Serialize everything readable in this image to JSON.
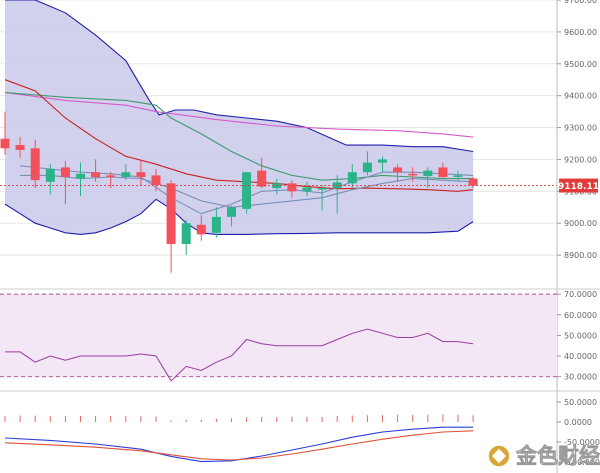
{
  "colors": {
    "background": "#ffffff",
    "bollinger_fill": "#c9c9ea",
    "bollinger_line": "#1f1fa8",
    "ma_red": "#c8231e",
    "ma_pink": "#d65ac9",
    "ma_green": "#3f9a6e",
    "ma_slate": "#7a8fb6",
    "up_candle": "#2bb38a",
    "down_candle": "#f2505a",
    "price_line": "#e23b3b",
    "price_label_bg": "#e23b3b",
    "rsi_fill": "#f3e6f5",
    "rsi_line": "#9b3ba0",
    "rsi_band": "#b04a8a",
    "macd_blue": "#2b3dd6",
    "macd_red": "#e2523a",
    "macd_hist": "#e06a6a",
    "grid": "#e8e8e8",
    "separator": "#cccccc"
  },
  "price_label": "9118.11",
  "watermark": {
    "text": "金色财经",
    "icon": "gold-coin-logo-icon"
  },
  "chart_data": [
    {
      "type": "candlestick",
      "panel": "price",
      "ylim": [
        8800,
        9700
      ],
      "y_ticks": [
        "9700.00",
        "9600.00",
        "9500.00",
        "9400.00",
        "9300.00",
        "9200.00",
        "9100.00",
        "9000.00",
        "8900.00"
      ],
      "y_tick_values": [
        9700,
        9600,
        9500,
        9400,
        9300,
        9200,
        9100,
        9000,
        8900
      ],
      "current_price": 9118.11,
      "candles": [
        {
          "o": 9265,
          "h": 9350,
          "l": 9215,
          "c": 9235
        },
        {
          "o": 9245,
          "h": 9270,
          "l": 9205,
          "c": 9230
        },
        {
          "o": 9235,
          "h": 9262,
          "l": 9110,
          "c": 9135
        },
        {
          "o": 9130,
          "h": 9185,
          "l": 9090,
          "c": 9170
        },
        {
          "o": 9175,
          "h": 9195,
          "l": 9060,
          "c": 9145
        },
        {
          "o": 9140,
          "h": 9190,
          "l": 9085,
          "c": 9155
        },
        {
          "o": 9160,
          "h": 9200,
          "l": 9130,
          "c": 9145
        },
        {
          "o": 9150,
          "h": 9160,
          "l": 9110,
          "c": 9148
        },
        {
          "o": 9145,
          "h": 9185,
          "l": 9135,
          "c": 9160
        },
        {
          "o": 9160,
          "h": 9195,
          "l": 9120,
          "c": 9145
        },
        {
          "o": 9150,
          "h": 9170,
          "l": 9100,
          "c": 9120
        },
        {
          "o": 9125,
          "h": 9135,
          "l": 8845,
          "c": 8935
        },
        {
          "o": 8935,
          "h": 9010,
          "l": 8900,
          "c": 9000
        },
        {
          "o": 8995,
          "h": 9025,
          "l": 8945,
          "c": 8965
        },
        {
          "o": 8970,
          "h": 9050,
          "l": 8955,
          "c": 9020
        },
        {
          "o": 9020,
          "h": 9055,
          "l": 8990,
          "c": 9050
        },
        {
          "o": 9045,
          "h": 9160,
          "l": 9030,
          "c": 9160
        },
        {
          "o": 9165,
          "h": 9205,
          "l": 9110,
          "c": 9115
        },
        {
          "o": 9110,
          "h": 9140,
          "l": 9090,
          "c": 9125
        },
        {
          "o": 9125,
          "h": 9135,
          "l": 9080,
          "c": 9100
        },
        {
          "o": 9100,
          "h": 9130,
          "l": 9085,
          "c": 9112
        },
        {
          "o": 9108,
          "h": 9120,
          "l": 9040,
          "c": 9110
        },
        {
          "o": 9110,
          "h": 9150,
          "l": 9030,
          "c": 9128
        },
        {
          "o": 9125,
          "h": 9185,
          "l": 9110,
          "c": 9160
        },
        {
          "o": 9160,
          "h": 9225,
          "l": 9150,
          "c": 9190
        },
        {
          "o": 9190,
          "h": 9210,
          "l": 9160,
          "c": 9200
        },
        {
          "o": 9175,
          "h": 9185,
          "l": 9130,
          "c": 9160
        },
        {
          "o": 9155,
          "h": 9175,
          "l": 9130,
          "c": 9150
        },
        {
          "o": 9148,
          "h": 9175,
          "l": 9110,
          "c": 9165
        },
        {
          "o": 9175,
          "h": 9190,
          "l": 9140,
          "c": 9145
        },
        {
          "o": 9145,
          "h": 9165,
          "l": 9130,
          "c": 9150
        },
        {
          "o": 9140,
          "h": 9145,
          "l": 9110,
          "c": 9118
        }
      ],
      "bollinger_upper": [
        {
          "x": 0,
          "y": 9700
        },
        {
          "x": 2,
          "y": 9700
        },
        {
          "x": 4,
          "y": 9660
        },
        {
          "x": 6,
          "y": 9590
        },
        {
          "x": 8,
          "y": 9510
        },
        {
          "x": 9.5,
          "y": 9390
        },
        {
          "x": 10.2,
          "y": 9340
        },
        {
          "x": 11.3,
          "y": 9355
        },
        {
          "x": 12.5,
          "y": 9355
        },
        {
          "x": 14,
          "y": 9340
        },
        {
          "x": 16,
          "y": 9330
        },
        {
          "x": 18,
          "y": 9320
        },
        {
          "x": 20,
          "y": 9300
        },
        {
          "x": 22.6,
          "y": 9245
        },
        {
          "x": 25,
          "y": 9245
        },
        {
          "x": 27,
          "y": 9240
        },
        {
          "x": 29,
          "y": 9240
        },
        {
          "x": 31,
          "y": 9225
        }
      ],
      "bollinger_lower": [
        {
          "x": 0,
          "y": 9060
        },
        {
          "x": 1,
          "y": 9030
        },
        {
          "x": 2,
          "y": 9000
        },
        {
          "x": 3,
          "y": 8985
        },
        {
          "x": 4,
          "y": 8970
        },
        {
          "x": 5,
          "y": 8965
        },
        {
          "x": 6,
          "y": 8970
        },
        {
          "x": 7,
          "y": 8985
        },
        {
          "x": 8,
          "y": 9005
        },
        {
          "x": 9,
          "y": 9030
        },
        {
          "x": 10,
          "y": 9075
        },
        {
          "x": 11,
          "y": 9045
        },
        {
          "x": 12,
          "y": 9000
        },
        {
          "x": 13,
          "y": 8970
        },
        {
          "x": 14,
          "y": 8965
        },
        {
          "x": 16,
          "y": 8965
        },
        {
          "x": 18,
          "y": 8967
        },
        {
          "x": 20,
          "y": 8968
        },
        {
          "x": 22,
          "y": 8970
        },
        {
          "x": 24,
          "y": 8970
        },
        {
          "x": 26,
          "y": 8970
        },
        {
          "x": 28,
          "y": 8970
        },
        {
          "x": 30,
          "y": 8975
        },
        {
          "x": 31,
          "y": 9005
        }
      ],
      "lines": [
        {
          "color_key": "ma_pink",
          "points": [
            {
              "x": 0,
              "y": 9410
            },
            {
              "x": 4,
              "y": 9385
            },
            {
              "x": 8,
              "y": 9370
            },
            {
              "x": 10,
              "y": 9350
            },
            {
              "x": 14,
              "y": 9325
            },
            {
              "x": 18,
              "y": 9305
            },
            {
              "x": 22,
              "y": 9295
            },
            {
              "x": 26,
              "y": 9290
            },
            {
              "x": 29,
              "y": 9280
            },
            {
              "x": 31,
              "y": 9270
            }
          ]
        },
        {
          "color_key": "ma_green",
          "points": [
            {
              "x": 0,
              "y": 9410
            },
            {
              "x": 4,
              "y": 9395
            },
            {
              "x": 8,
              "y": 9385
            },
            {
              "x": 10,
              "y": 9370
            },
            {
              "x": 11,
              "y": 9330
            },
            {
              "x": 13,
              "y": 9280
            },
            {
              "x": 15,
              "y": 9225
            },
            {
              "x": 17,
              "y": 9180
            },
            {
              "x": 19,
              "y": 9150
            },
            {
              "x": 21,
              "y": 9135
            },
            {
              "x": 23,
              "y": 9140
            },
            {
              "x": 25,
              "y": 9150
            },
            {
              "x": 27,
              "y": 9145
            },
            {
              "x": 29,
              "y": 9140
            },
            {
              "x": 31,
              "y": 9140
            }
          ]
        },
        {
          "color_key": "ma_red",
          "points": [
            {
              "x": 0,
              "y": 9450
            },
            {
              "x": 2,
              "y": 9415
            },
            {
              "x": 4,
              "y": 9330
            },
            {
              "x": 6,
              "y": 9265
            },
            {
              "x": 8,
              "y": 9210
            },
            {
              "x": 10,
              "y": 9185
            },
            {
              "x": 12,
              "y": 9155
            },
            {
              "x": 14,
              "y": 9135
            },
            {
              "x": 16,
              "y": 9130
            },
            {
              "x": 18,
              "y": 9125
            },
            {
              "x": 20,
              "y": 9115
            },
            {
              "x": 22,
              "y": 9108
            },
            {
              "x": 24,
              "y": 9110
            },
            {
              "x": 26,
              "y": 9108
            },
            {
              "x": 28,
              "y": 9105
            },
            {
              "x": 30,
              "y": 9100
            },
            {
              "x": 31,
              "y": 9105
            }
          ]
        },
        {
          "color_key": "ma_slate",
          "points": [
            {
              "x": 1,
              "y": 9180
            },
            {
              "x": 3,
              "y": 9170
            },
            {
              "x": 5,
              "y": 9160
            },
            {
              "x": 7,
              "y": 9155
            },
            {
              "x": 9,
              "y": 9145
            },
            {
              "x": 11,
              "y": 9080
            },
            {
              "x": 13,
              "y": 9030
            },
            {
              "x": 15,
              "y": 9060
            },
            {
              "x": 17,
              "y": 9100
            },
            {
              "x": 19,
              "y": 9105
            },
            {
              "x": 21,
              "y": 9095
            },
            {
              "x": 23,
              "y": 9130
            },
            {
              "x": 25,
              "y": 9160
            },
            {
              "x": 27,
              "y": 9160
            },
            {
              "x": 29,
              "y": 9155
            },
            {
              "x": 31,
              "y": 9150
            }
          ]
        },
        {
          "color_key": "ma_slate",
          "points": [
            {
              "x": 1,
              "y": 9150
            },
            {
              "x": 3,
              "y": 9150
            },
            {
              "x": 5,
              "y": 9140
            },
            {
              "x": 7,
              "y": 9145
            },
            {
              "x": 9,
              "y": 9140
            },
            {
              "x": 11,
              "y": 9110
            },
            {
              "x": 13,
              "y": 9070
            },
            {
              "x": 15,
              "y": 9050
            },
            {
              "x": 17,
              "y": 9060
            },
            {
              "x": 19,
              "y": 9070
            },
            {
              "x": 21,
              "y": 9080
            },
            {
              "x": 23,
              "y": 9105
            },
            {
              "x": 25,
              "y": 9125
            },
            {
              "x": 27,
              "y": 9140
            },
            {
              "x": 29,
              "y": 9135
            },
            {
              "x": 31,
              "y": 9130
            }
          ]
        }
      ]
    },
    {
      "type": "line",
      "panel": "rsi",
      "ylim": [
        25,
        72
      ],
      "y_ticks": [
        "70.0000",
        "60.0000",
        "50.0000",
        "40.0000",
        "30.0000"
      ],
      "y_tick_values": [
        70,
        60,
        50,
        40,
        30
      ],
      "bands": [
        70,
        30
      ],
      "points": [
        {
          "x": 0,
          "y": 42
        },
        {
          "x": 1,
          "y": 42
        },
        {
          "x": 2,
          "y": 37
        },
        {
          "x": 3,
          "y": 40
        },
        {
          "x": 4,
          "y": 38
        },
        {
          "x": 5,
          "y": 40
        },
        {
          "x": 6,
          "y": 40
        },
        {
          "x": 7,
          "y": 40
        },
        {
          "x": 8,
          "y": 40
        },
        {
          "x": 9,
          "y": 41
        },
        {
          "x": 10,
          "y": 40
        },
        {
          "x": 11,
          "y": 28
        },
        {
          "x": 12,
          "y": 35
        },
        {
          "x": 13,
          "y": 33
        },
        {
          "x": 14,
          "y": 37
        },
        {
          "x": 15,
          "y": 40
        },
        {
          "x": 16,
          "y": 48
        },
        {
          "x": 17,
          "y": 46
        },
        {
          "x": 18,
          "y": 45
        },
        {
          "x": 19,
          "y": 45
        },
        {
          "x": 20,
          "y": 45
        },
        {
          "x": 21,
          "y": 45
        },
        {
          "x": 22,
          "y": 48
        },
        {
          "x": 23,
          "y": 51
        },
        {
          "x": 24,
          "y": 53
        },
        {
          "x": 25,
          "y": 51
        },
        {
          "x": 26,
          "y": 49
        },
        {
          "x": 27,
          "y": 49
        },
        {
          "x": 28,
          "y": 51
        },
        {
          "x": 29,
          "y": 47
        },
        {
          "x": 30,
          "y": 47
        },
        {
          "x": 31,
          "y": 46
        }
      ]
    },
    {
      "type": "line",
      "panel": "macd",
      "ylim": [
        -110,
        60
      ],
      "y_ticks": [
        "50.0000",
        "0.0000",
        "-50.0000",
        "-100.0000"
      ],
      "y_tick_values": [
        50,
        0,
        -50,
        -100
      ],
      "histogram": [
        15,
        16,
        16,
        15,
        15,
        15,
        15,
        15,
        15,
        15,
        14,
        4,
        6,
        6,
        8,
        9,
        12,
        13,
        13,
        13,
        13,
        13,
        15,
        16,
        17,
        17,
        18,
        18,
        18,
        19,
        18,
        17
      ],
      "series": [
        {
          "color_key": "macd_blue",
          "points": [
            {
              "x": 0,
              "y": -40
            },
            {
              "x": 3,
              "y": -46
            },
            {
              "x": 6,
              "y": -55
            },
            {
              "x": 9,
              "y": -68
            },
            {
              "x": 11,
              "y": -86
            },
            {
              "x": 13,
              "y": -99
            },
            {
              "x": 15,
              "y": -97
            },
            {
              "x": 17,
              "y": -85
            },
            {
              "x": 19,
              "y": -70
            },
            {
              "x": 21,
              "y": -55
            },
            {
              "x": 23,
              "y": -38
            },
            {
              "x": 25,
              "y": -25
            },
            {
              "x": 27,
              "y": -18
            },
            {
              "x": 29,
              "y": -13
            },
            {
              "x": 31,
              "y": -13
            }
          ]
        },
        {
          "color_key": "macd_red",
          "points": [
            {
              "x": 0,
              "y": -52
            },
            {
              "x": 3,
              "y": -57
            },
            {
              "x": 6,
              "y": -63
            },
            {
              "x": 9,
              "y": -72
            },
            {
              "x": 11,
              "y": -82
            },
            {
              "x": 13,
              "y": -92
            },
            {
              "x": 15,
              "y": -95
            },
            {
              "x": 17,
              "y": -90
            },
            {
              "x": 19,
              "y": -80
            },
            {
              "x": 21,
              "y": -68
            },
            {
              "x": 23,
              "y": -55
            },
            {
              "x": 25,
              "y": -43
            },
            {
              "x": 27,
              "y": -33
            },
            {
              "x": 29,
              "y": -25
            },
            {
              "x": 31,
              "y": -22
            }
          ]
        }
      ]
    }
  ]
}
